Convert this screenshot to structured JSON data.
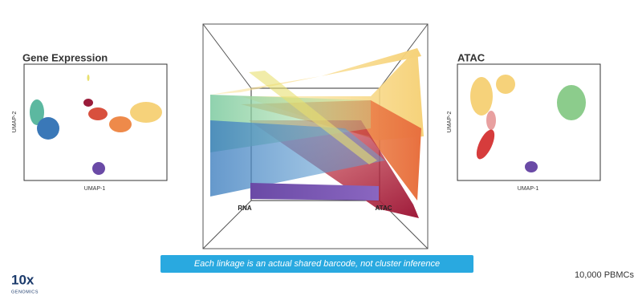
{
  "left_panel": {
    "title": "Gene Expression",
    "y_label": "UMAP-2",
    "x_label": "UMAP-1"
  },
  "right_panel": {
    "title": "ATAC",
    "y_label": "UMAP-2",
    "x_label": "UMAP-1"
  },
  "center_panel": {
    "left_label": "RNA",
    "right_label": "ATAC"
  },
  "caption": "Each linkage is an actual shared barcode, not cluster inference",
  "footnote": "10,000 PBMCs",
  "logo": {
    "mark": "10x",
    "text": "GENOMICS"
  }
}
